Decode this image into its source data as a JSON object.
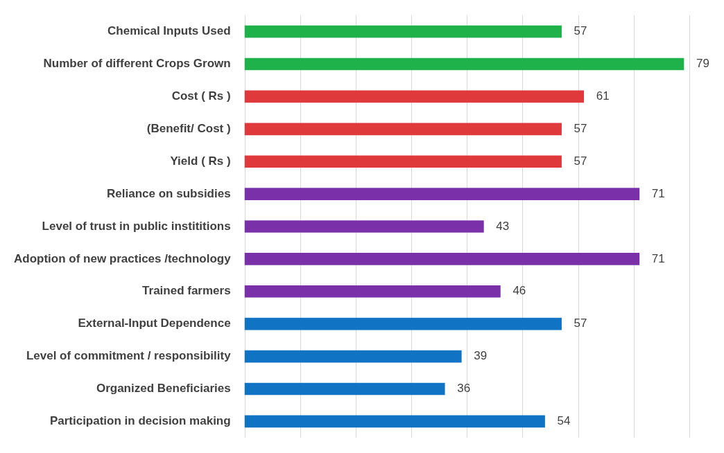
{
  "chart_data": {
    "type": "bar",
    "orientation": "horizontal",
    "categories": [
      "Chemical Inputs Used",
      "Number of different Crops Grown",
      "Cost ( Rs )",
      "(Benefit/ Cost )",
      "Yield ( Rs )",
      "Reliance on subsidies",
      "Level of trust in public instititions",
      "Adoption of new practices /technology",
      "Trained farmers",
      "External-Input Dependence",
      "Level of commitment / responsibility",
      "Organized Beneficiaries",
      "Participation in decision making"
    ],
    "values": [
      57,
      79,
      61,
      57,
      57,
      71,
      43,
      71,
      46,
      57,
      39,
      36,
      54
    ],
    "colors": [
      "#1fb24a",
      "#1fb24a",
      "#e0393b",
      "#e0393b",
      "#e0393b",
      "#7a30a8",
      "#7a30a8",
      "#7a30a8",
      "#7a30a8",
      "#1173c4",
      "#1173c4",
      "#1173c4",
      "#1173c4"
    ],
    "tick_labels": "y",
    "grid": "x",
    "data_labels": true,
    "legend": false
  }
}
